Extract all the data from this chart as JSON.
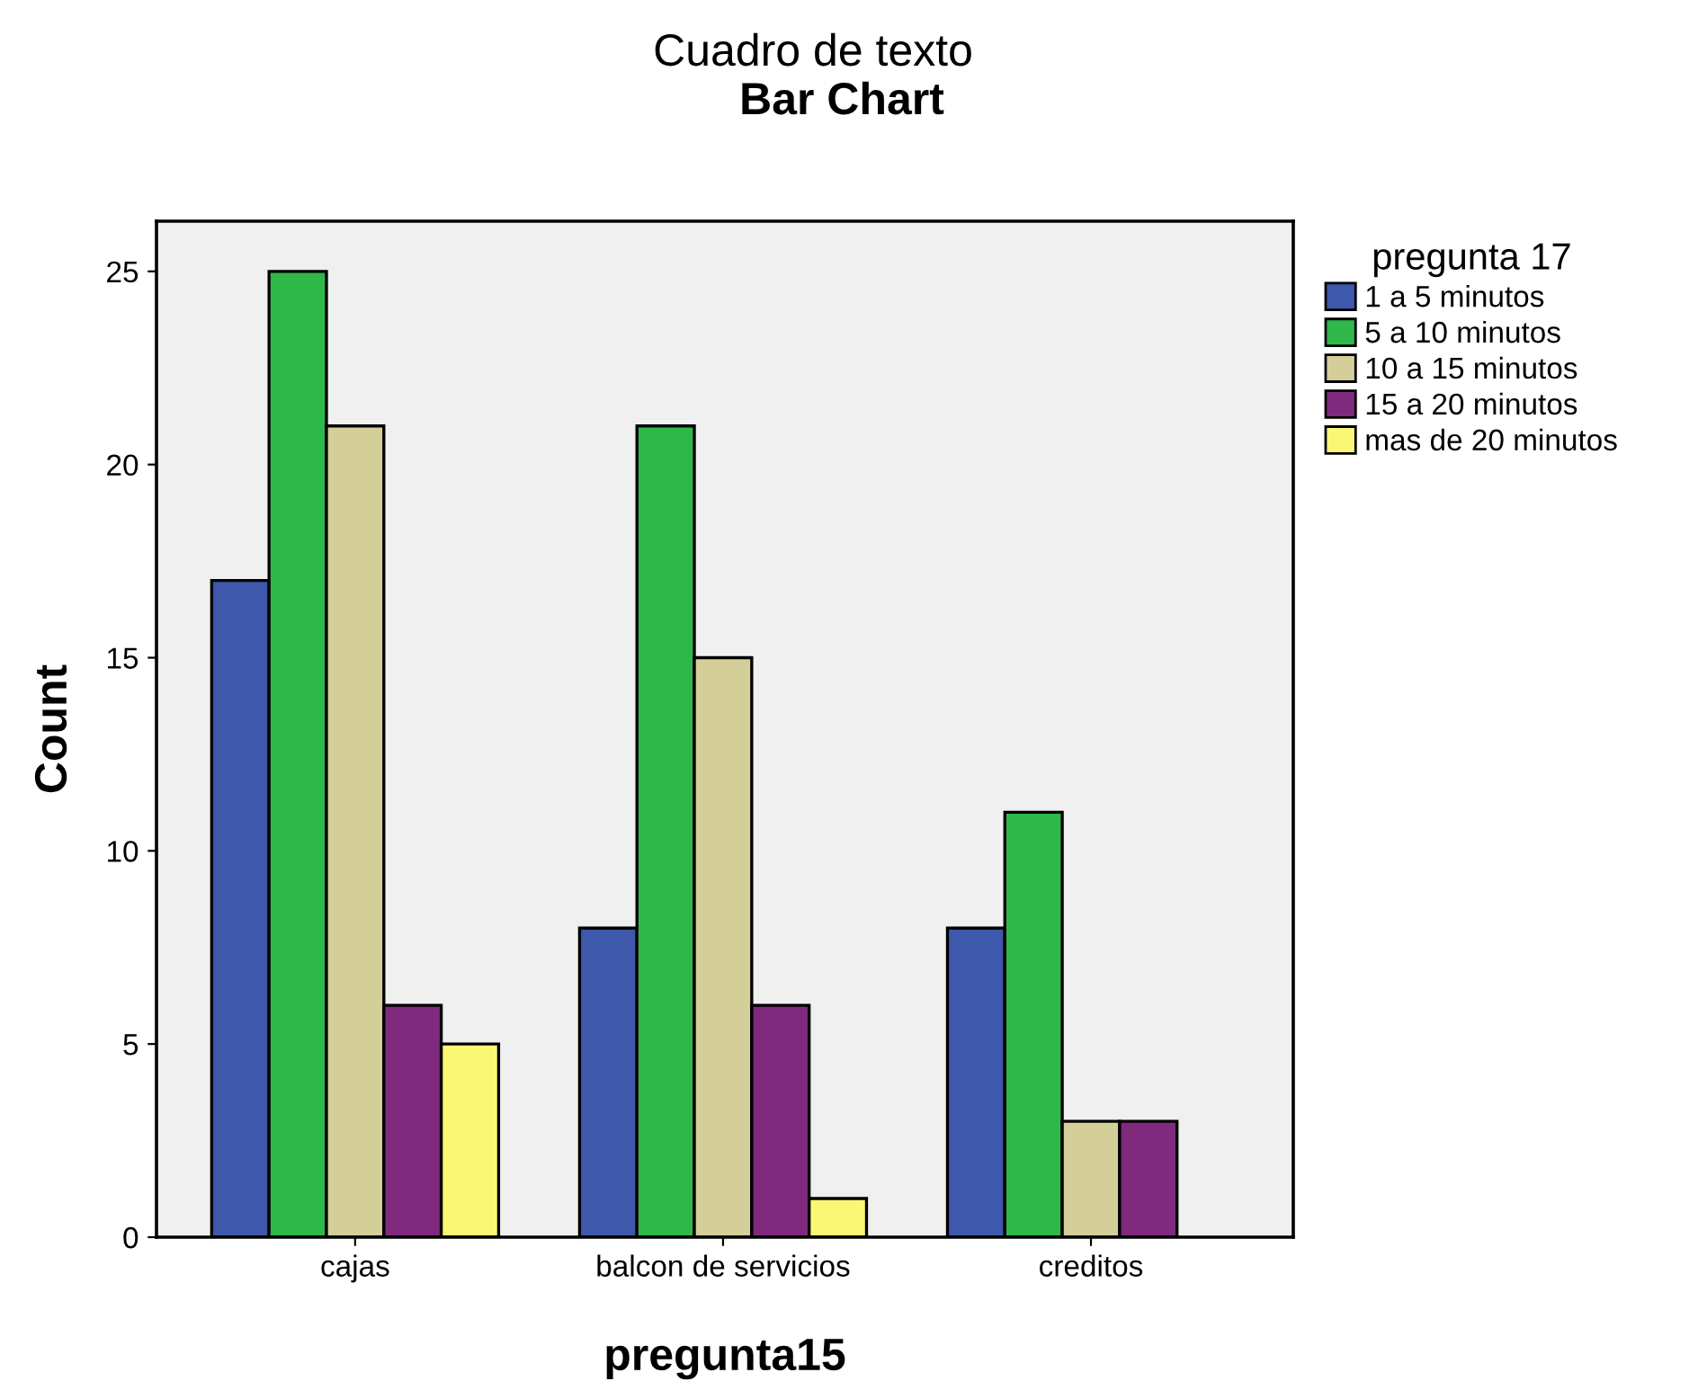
{
  "chart_data": {
    "type": "bar",
    "title": "Cuadro de texto",
    "subtitle": "Bar Chart",
    "xlabel": "pregunta15",
    "ylabel": "Count",
    "legend_title": "pregunta 17",
    "legend": "right",
    "grid": false,
    "categories": [
      "cajas",
      "balcon de servicios",
      "creditos"
    ],
    "series": [
      {
        "name": "1 a 5 minutos",
        "color": "#3e58ac",
        "values": [
          17,
          8,
          8
        ]
      },
      {
        "name": "5 a 10 minutos",
        "color": "#2fb84a",
        "values": [
          25,
          21,
          11
        ]
      },
      {
        "name": "10 a 15 minutos",
        "color": "#d4cf99",
        "values": [
          21,
          15,
          3
        ]
      },
      {
        "name": "15 a 20 minutos",
        "color": "#7f2a7d",
        "values": [
          6,
          6,
          3
        ]
      },
      {
        "name": "mas de 20 minutos",
        "color": "#fbf776",
        "values": [
          5,
          1,
          null
        ]
      }
    ],
    "ylim": [
      0,
      26.3
    ],
    "yticks": [
      0,
      5,
      10,
      15,
      20,
      25
    ]
  }
}
